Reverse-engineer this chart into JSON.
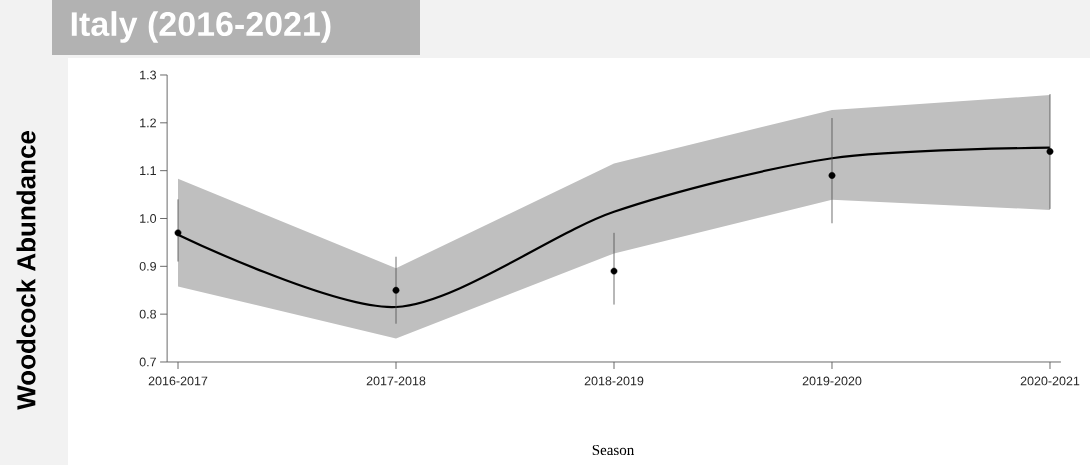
{
  "chart_data": {
    "type": "line",
    "title": "Italy (2016-2021)",
    "xlabel": "Season",
    "ylabel": "Woodcock Abundance",
    "categories": [
      "2016-2017",
      "2017-2018",
      "2018-2019",
      "2019-2020",
      "2020-2021"
    ],
    "ylim": [
      0.7,
      1.3
    ],
    "yticks": [
      {
        "value": 0.7,
        "label": "0.7"
      },
      {
        "value": 0.8,
        "label": "0.8"
      },
      {
        "value": 0.9,
        "label": "0.9"
      },
      {
        "value": 1,
        "label": "1.0"
      },
      {
        "value": 1.1,
        "label": "1.1"
      },
      {
        "value": 1.2,
        "label": "1.2"
      },
      {
        "value": 1.3,
        "label": "1.3"
      }
    ],
    "grid": false,
    "series": [
      {
        "color": "#000000",
        "values": [
          0.966,
          0.815,
          1.014,
          1.126,
          1.148
        ],
        "lower": [
          0.858,
          0.749,
          0.927,
          1.039,
          1.018
        ],
        "upper": [
          1.083,
          0.896,
          1.115,
          1.227,
          1.258
        ]
      },
      {
        "type": "scatter",
        "color": "#000000",
        "values": [
          0.97,
          0.85,
          0.89,
          1.09,
          1.14
        ],
        "errors": [
          [
            0.91,
            1.04
          ],
          [
            0.78,
            0.92
          ],
          [
            0.82,
            0.97
          ],
          [
            0.99,
            1.21
          ],
          [
            1.02,
            1.26
          ]
        ]
      }
    ]
  }
}
